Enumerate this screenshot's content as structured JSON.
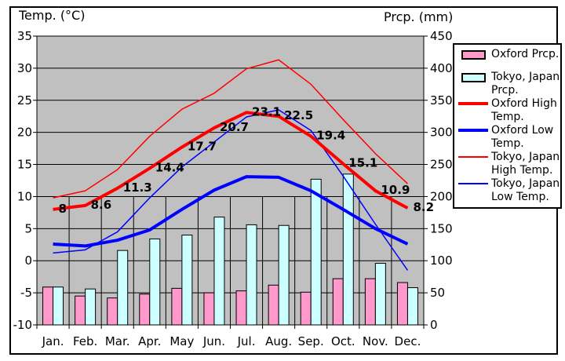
{
  "titles": {
    "left": "Temp. (°C)",
    "right": "Prcp.  (mm)"
  },
  "chart_data": {
    "type": "combo-bar-line",
    "plot_bg": "#C0C0C0",
    "categories": [
      "Jan.",
      "Feb.",
      "Mar.",
      "Apr.",
      "May",
      "Jun.",
      "Jul.",
      "Aug.",
      "Sep.",
      "Oct.",
      "Nov.",
      "Dec."
    ],
    "temp_axis": {
      "title": "Temp. (°C)",
      "min": -10,
      "max": 35,
      "step": 5,
      "ticks": [
        "35",
        "30",
        "25",
        "20",
        "15",
        "10",
        "5",
        "0",
        "-5",
        "-10"
      ]
    },
    "prcp_axis": {
      "title": "Prcp. (mm)",
      "min": 0,
      "max": 450,
      "step": 50,
      "ticks": [
        "450",
        "400",
        "350",
        "300",
        "250",
        "200",
        "150",
        "100",
        "50",
        "0"
      ]
    },
    "series": [
      {
        "name": "Oxford Prcp.",
        "type": "bar",
        "color": "#FF99CC",
        "values": [
          59,
          45,
          42,
          48,
          57,
          50,
          53,
          62,
          51,
          72,
          72,
          66
        ]
      },
      {
        "name": "Tokyo, Japan Prcp.",
        "type": "bar",
        "color": "#CCFFFF",
        "values": [
          59,
          56,
          116,
          134,
          140,
          168,
          156,
          155,
          227,
          235,
          96,
          58
        ]
      },
      {
        "name": "Tokyo, Japan High Temp.",
        "type": "line",
        "thickness": "thin",
        "color": "#FF0000",
        "values": [
          9.8,
          10.9,
          14.2,
          19.4,
          23.6,
          26.1,
          29.9,
          31.3,
          27.5,
          22.0,
          16.7,
          12.0
        ]
      },
      {
        "name": "Tokyo, Japan Low Temp.",
        "type": "line",
        "thickness": "thin",
        "color": "#0000FF",
        "values": [
          1.2,
          1.7,
          4.5,
          9.8,
          14.6,
          18.5,
          22.4,
          23.5,
          20.3,
          13.2,
          5.7,
          -1.5
        ]
      },
      {
        "name": "Oxford Low Temp.",
        "type": "line",
        "thickness": "thick",
        "color": "#0000FF",
        "values": [
          2.6,
          2.3,
          3.2,
          4.8,
          8.0,
          11.0,
          13.1,
          13.0,
          10.9,
          8.0,
          5.0,
          2.6
        ]
      },
      {
        "name": "Oxford High Temp.",
        "type": "line",
        "thickness": "thick",
        "color": "#FF0000",
        "values": [
          8,
          8.6,
          11.3,
          14.4,
          17.7,
          20.7,
          23.1,
          22.5,
          19.4,
          15.1,
          10.9,
          8.2
        ],
        "point_labels": [
          "8",
          "8.6",
          "11.3",
          "14.4",
          "17.7",
          "20.7",
          "23.1",
          "22.5",
          "19.4",
          "15.1",
          "10.9",
          "8.2"
        ]
      }
    ],
    "legend": [
      {
        "lines": [
          "Oxford Prcp."
        ],
        "swatch": "bar",
        "color": "#FF99CC"
      },
      {
        "lines": [
          "Tokyo, Japan",
          "Prcp."
        ],
        "swatch": "bar",
        "color": "#CCFFFF"
      },
      {
        "lines": [
          "Oxford High",
          "Temp."
        ],
        "swatch": "thick-line",
        "color": "#FF0000"
      },
      {
        "lines": [
          "Oxford Low",
          "Temp."
        ],
        "swatch": "thick-line",
        "color": "#0000FF"
      },
      {
        "lines": [
          "Tokyo, Japan",
          "High Temp."
        ],
        "swatch": "thin-line",
        "color": "#FF0000"
      },
      {
        "lines": [
          "Tokyo, Japan",
          "Low Temp."
        ],
        "swatch": "thin-line",
        "color": "#0000FF"
      }
    ]
  }
}
